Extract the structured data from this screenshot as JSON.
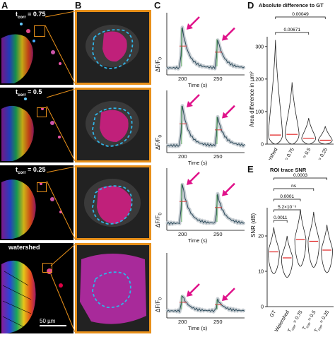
{
  "panels": {
    "A": "A",
    "B": "B",
    "C": "C",
    "D": "D",
    "E": "E"
  },
  "rows": [
    {
      "label_prefix": "t",
      "label_sub": "corr",
      "label_suffix": " = 0.75"
    },
    {
      "label_prefix": "t",
      "label_sub": "corr",
      "label_suffix": " = 0.5"
    },
    {
      "label_prefix": "t",
      "label_sub": "corr",
      "label_suffix": " = 0.25"
    },
    {
      "label_prefix": "watershed",
      "label_sub": "",
      "label_suffix": ""
    }
  ],
  "scalebar": "50 µm",
  "traces": {
    "ylabel": "ΔF/F",
    "ylabel_sub": "0",
    "xlabel": "Time (s)",
    "xticks": [
      "200",
      "250"
    ]
  },
  "colors": {
    "accent_orange": "#e8901a",
    "arrow_magenta": "#e0128a",
    "roi_blue": "#2fb5e8",
    "mask_magenta": "#c0207a"
  },
  "chart_data": [
    {
      "type": "violin",
      "title": "Absolute difference to GT",
      "ylabel": "Area difference in µm²",
      "yticks": [
        "0",
        "100",
        "200",
        "300"
      ],
      "ylim": [
        0,
        330
      ],
      "categories": [
        "Watershed",
        "T_corr = 0.75",
        "T_corr = 0.5",
        "T_corr = 0.25"
      ],
      "category_labels": [
        {
          "main": "Watershed",
          "sub": "",
          "suffix": ""
        },
        {
          "main": "T",
          "sub": "corr",
          "suffix": " = 0.75"
        },
        {
          "main": "T",
          "sub": "corr",
          "suffix": " = 0.5"
        },
        {
          "main": "T",
          "sub": "corr",
          "suffix": " = 0.25"
        }
      ],
      "medians": [
        28,
        30,
        18,
        12
      ],
      "max": [
        320,
        190,
        80,
        55
      ],
      "comparisons": [
        {
          "from": 0,
          "to": 3,
          "label": "0.00049"
        },
        {
          "from": 0,
          "to": 2,
          "label": "0.00671"
        }
      ]
    },
    {
      "type": "violin",
      "title": "ROI trace SNR",
      "ylabel": "SNR (dB)",
      "yticks": [
        "0",
        "10",
        "20"
      ],
      "ylim": [
        0,
        28
      ],
      "categories": [
        "GT",
        "Watershed",
        "T_corr = 0.75",
        "T_corr = 0.5",
        "T_corr = 0.25"
      ],
      "category_labels": [
        {
          "main": "GT",
          "sub": "",
          "suffix": ""
        },
        {
          "main": "Watershed",
          "sub": "",
          "suffix": ""
        },
        {
          "main": "T",
          "sub": "corr",
          "suffix": " = 0.75"
        },
        {
          "main": "T",
          "sub": "corr",
          "suffix": " = 0.5"
        },
        {
          "main": "T",
          "sub": "corr",
          "suffix": " = 0.25"
        }
      ],
      "medians": [
        15.5,
        13.8,
        19,
        18.5,
        16
      ],
      "comparisons": [
        {
          "from": 0,
          "to": 4,
          "label": "0.0003"
        },
        {
          "from": 0,
          "to": 3,
          "label": "ns"
        },
        {
          "from": 0,
          "to": 2,
          "label": "0.0001"
        },
        {
          "from": 0,
          "to": 2,
          "label": "5.2×10⁻⁶"
        },
        {
          "from": 0,
          "to": 1,
          "label": "0.0011"
        }
      ]
    }
  ]
}
